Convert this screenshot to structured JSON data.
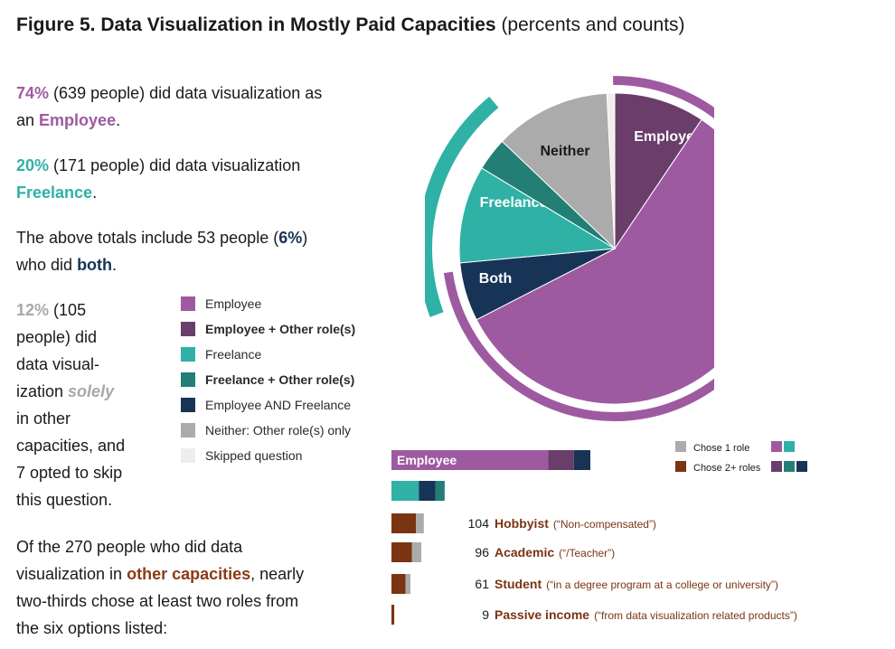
{
  "title": {
    "main": "Figure 5. Data Visualization in Mostly Paid Capacities",
    "sub": "(percents and counts)"
  },
  "paragraphs": {
    "p1": {
      "pct": "74%",
      "count": "(639 people) did data visualization as",
      "line2a": "an",
      "role": "Employee",
      "end": "."
    },
    "p2": {
      "pct": "20%",
      "count": "(171 people) did data visualization",
      "role": "Freelance",
      "end": "."
    },
    "p3": {
      "line1a": "The above totals include 53 people (",
      "pct": "6%",
      "line1b": ")",
      "line2a": "who did",
      "role": "both",
      "end": "."
    },
    "p4": {
      "pct": "12%",
      "l1": "(105",
      "l2": "people) did",
      "l3": "data visual-",
      "l4a": "ization",
      "solely": "solely",
      "l5": "in other",
      "l6": "capacities, and",
      "l7": "7 opted to skip",
      "l8": "this question."
    },
    "p5": {
      "l1": "Of the 270 people who did data",
      "l2a": "visualization in",
      "other": "other capacities",
      "l2b": ", nearly",
      "l3": "two-thirds chose at least two roles from",
      "l4": "the six options listed:"
    }
  },
  "legend": [
    {
      "label": "Employee",
      "color": "#9e5aa0",
      "bold": false
    },
    {
      "label": "Employee + Other role(s)",
      "color": "#6a3d6b",
      "bold": true
    },
    {
      "label": "Freelance",
      "color": "#2fb1a6",
      "bold": false
    },
    {
      "label": "Freelance + Other role(s)",
      "color": "#237e76",
      "bold": true
    },
    {
      "label": "Employee AND Freelance",
      "color": "#173457",
      "bold": false
    },
    {
      "label": "Neither: Other role(s) only",
      "color": "#ababab",
      "bold": false
    },
    {
      "label": "Skipped question",
      "color": "#eeeeee",
      "bold": false
    }
  ],
  "colors": {
    "employee": "#9e5aa0",
    "employee_other": "#6a3d6b",
    "freelance": "#2fb1a6",
    "freelance_other": "#237e76",
    "both": "#173457",
    "neither": "#ababab",
    "skipped": "#eeeeee",
    "brown": "#7a3412",
    "brown_light": "#a8a8a8"
  },
  "chart_data": [
    {
      "type": "pie",
      "slices": [
        {
          "name": "Employee",
          "group": "Employee + Other role(s)",
          "value": 82,
          "color": "#6a3d6b",
          "label": "Employee"
        },
        {
          "name": "Employee only",
          "group": "Employee",
          "value": 504,
          "color": "#9e5aa0",
          "label": ""
        },
        {
          "name": "Both",
          "group": "Employee AND Freelance",
          "value": 53,
          "color": "#173457",
          "label": "Both"
        },
        {
          "name": "Freelance",
          "group": "Freelance",
          "value": 88,
          "color": "#2fb1a6",
          "label": "Freelance"
        },
        {
          "name": "Freelance + Other",
          "group": "Freelance + Other role(s)",
          "value": 30,
          "color": "#237e76",
          "label": ""
        },
        {
          "name": "Neither",
          "group": "Neither: Other role(s) only",
          "value": 105,
          "color": "#ababab",
          "label": "Neither"
        },
        {
          "name": "Skipped",
          "group": "Skipped question",
          "value": 7,
          "color": "#eeeeee",
          "label": ""
        }
      ],
      "arcs": [
        {
          "name": "Employee",
          "value": 639,
          "color": "#9e5aa0"
        },
        {
          "name": "Freelance",
          "value": 171,
          "color": "#2fb1a6"
        }
      ]
    },
    {
      "type": "bar",
      "orientation": "horizontal",
      "stacked": true,
      "legend": [
        {
          "label": "Chose 1 role",
          "color": "#ababab",
          "swatches": [
            "#9e5aa0",
            "#2fb1a6"
          ]
        },
        {
          "label": "Chose 2+ roles",
          "color": "#7a3412",
          "swatches": [
            "#6a3d6b",
            "#237e76",
            "#173457"
          ]
        }
      ],
      "rows": [
        {
          "label": "Employee",
          "count": "",
          "desc": "",
          "segments": [
            {
              "value": 504,
              "color": "#9e5aa0"
            },
            {
              "value": 82,
              "color": "#6a3d6b"
            },
            {
              "value": 53,
              "color": "#173457"
            }
          ]
        },
        {
          "label": "",
          "count": "",
          "desc": "",
          "segments": [
            {
              "value": 88,
              "color": "#2fb1a6"
            },
            {
              "value": 53,
              "color": "#173457"
            },
            {
              "value": 30,
              "color": "#237e76"
            }
          ]
        },
        {
          "label": "Hobbyist",
          "count": "104",
          "desc": "(“Non-compensated”)",
          "segments": [
            {
              "value": 79,
              "color": "#7a3412"
            },
            {
              "value": 25,
              "color": "#ababab"
            }
          ]
        },
        {
          "label": "Academic",
          "count": "96",
          "desc": "(“/Teacher”)",
          "segments": [
            {
              "value": 66,
              "color": "#7a3412"
            },
            {
              "value": 30,
              "color": "#ababab"
            }
          ]
        },
        {
          "label": "Student",
          "count": "61",
          "desc": "(“in a degree program at a college or university”)",
          "segments": [
            {
              "value": 45,
              "color": "#7a3412"
            },
            {
              "value": 16,
              "color": "#ababab"
            }
          ]
        },
        {
          "label": "Passive income",
          "count": "9",
          "desc": "(“from data visualization related products”)",
          "segments": [
            {
              "value": 9,
              "color": "#7a3412"
            }
          ]
        }
      ]
    }
  ]
}
